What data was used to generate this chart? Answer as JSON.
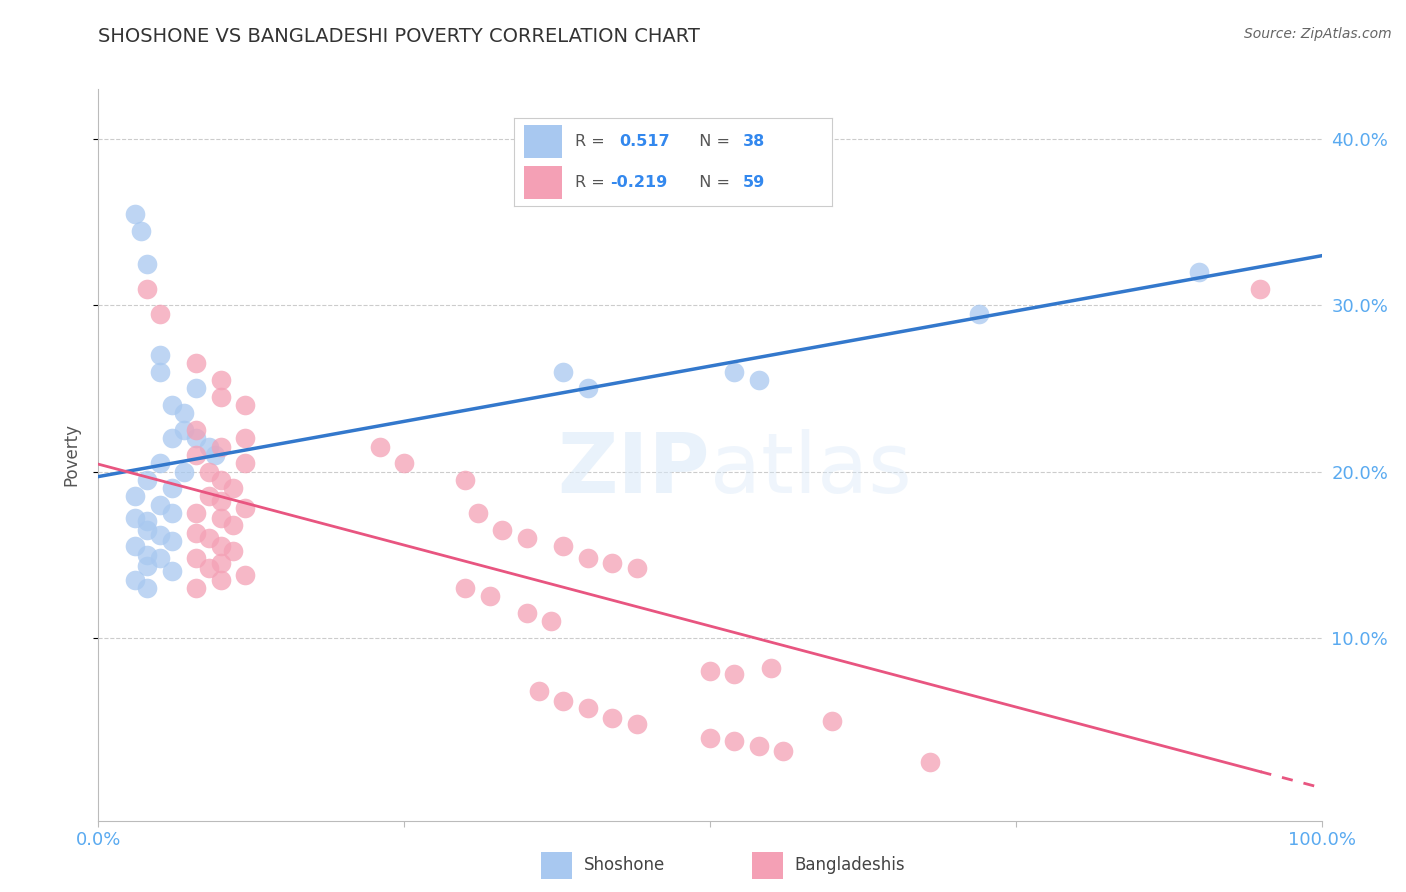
{
  "title": "SHOSHONE VS BANGLADESHI POVERTY CORRELATION CHART",
  "source": "Source: ZipAtlas.com",
  "ylabel": "Poverty",
  "watermark": "ZIPatlas",
  "legend": {
    "shoshone_R": "0.517",
    "shoshone_N": "38",
    "bangladeshi_R": "-0.219",
    "bangladeshi_N": "59"
  },
  "shoshone_color": "#A8C8F0",
  "bangladeshi_color": "#F4A0B5",
  "regression_shoshone_color": "#3378CC",
  "regression_bangladeshi_color": "#E85580",
  "background": "#FFFFFF",
  "grid_color": "#CCCCCC",
  "right_axis_color": "#5AAAF0",
  "shoshone_points": [
    [
      0.03,
      0.355
    ],
    [
      0.035,
      0.345
    ],
    [
      0.04,
      0.325
    ],
    [
      0.05,
      0.27
    ],
    [
      0.05,
      0.26
    ],
    [
      0.08,
      0.25
    ],
    [
      0.06,
      0.24
    ],
    [
      0.07,
      0.235
    ],
    [
      0.07,
      0.225
    ],
    [
      0.06,
      0.22
    ],
    [
      0.08,
      0.22
    ],
    [
      0.09,
      0.215
    ],
    [
      0.095,
      0.21
    ],
    [
      0.05,
      0.205
    ],
    [
      0.07,
      0.2
    ],
    [
      0.04,
      0.195
    ],
    [
      0.06,
      0.19
    ],
    [
      0.03,
      0.185
    ],
    [
      0.05,
      0.18
    ],
    [
      0.06,
      0.175
    ],
    [
      0.03,
      0.172
    ],
    [
      0.04,
      0.17
    ],
    [
      0.04,
      0.165
    ],
    [
      0.05,
      0.162
    ],
    [
      0.06,
      0.158
    ],
    [
      0.03,
      0.155
    ],
    [
      0.04,
      0.15
    ],
    [
      0.05,
      0.148
    ],
    [
      0.04,
      0.143
    ],
    [
      0.06,
      0.14
    ],
    [
      0.03,
      0.135
    ],
    [
      0.04,
      0.13
    ],
    [
      0.38,
      0.26
    ],
    [
      0.4,
      0.25
    ],
    [
      0.52,
      0.26
    ],
    [
      0.54,
      0.255
    ],
    [
      0.72,
      0.295
    ],
    [
      0.9,
      0.32
    ]
  ],
  "bangladeshi_points": [
    [
      0.04,
      0.31
    ],
    [
      0.05,
      0.295
    ],
    [
      0.95,
      0.31
    ],
    [
      0.08,
      0.265
    ],
    [
      0.1,
      0.255
    ],
    [
      0.1,
      0.245
    ],
    [
      0.12,
      0.24
    ],
    [
      0.08,
      0.225
    ],
    [
      0.12,
      0.22
    ],
    [
      0.1,
      0.215
    ],
    [
      0.08,
      0.21
    ],
    [
      0.12,
      0.205
    ],
    [
      0.09,
      0.2
    ],
    [
      0.1,
      0.195
    ],
    [
      0.11,
      0.19
    ],
    [
      0.09,
      0.185
    ],
    [
      0.1,
      0.182
    ],
    [
      0.12,
      0.178
    ],
    [
      0.08,
      0.175
    ],
    [
      0.1,
      0.172
    ],
    [
      0.11,
      0.168
    ],
    [
      0.08,
      0.163
    ],
    [
      0.09,
      0.16
    ],
    [
      0.1,
      0.155
    ],
    [
      0.11,
      0.152
    ],
    [
      0.08,
      0.148
    ],
    [
      0.1,
      0.145
    ],
    [
      0.09,
      0.142
    ],
    [
      0.12,
      0.138
    ],
    [
      0.1,
      0.135
    ],
    [
      0.08,
      0.13
    ],
    [
      0.23,
      0.215
    ],
    [
      0.25,
      0.205
    ],
    [
      0.3,
      0.195
    ],
    [
      0.31,
      0.175
    ],
    [
      0.33,
      0.165
    ],
    [
      0.35,
      0.16
    ],
    [
      0.38,
      0.155
    ],
    [
      0.4,
      0.148
    ],
    [
      0.42,
      0.145
    ],
    [
      0.44,
      0.142
    ],
    [
      0.3,
      0.13
    ],
    [
      0.32,
      0.125
    ],
    [
      0.35,
      0.115
    ],
    [
      0.37,
      0.11
    ],
    [
      0.5,
      0.08
    ],
    [
      0.52,
      0.078
    ],
    [
      0.55,
      0.082
    ],
    [
      0.6,
      0.05
    ],
    [
      0.68,
      0.025
    ],
    [
      0.36,
      0.068
    ],
    [
      0.38,
      0.062
    ],
    [
      0.4,
      0.058
    ],
    [
      0.42,
      0.052
    ],
    [
      0.44,
      0.048
    ],
    [
      0.5,
      0.04
    ],
    [
      0.52,
      0.038
    ],
    [
      0.54,
      0.035
    ],
    [
      0.56,
      0.032
    ]
  ],
  "xlim": [
    0.0,
    1.0
  ],
  "ylim": [
    -0.01,
    0.43
  ]
}
